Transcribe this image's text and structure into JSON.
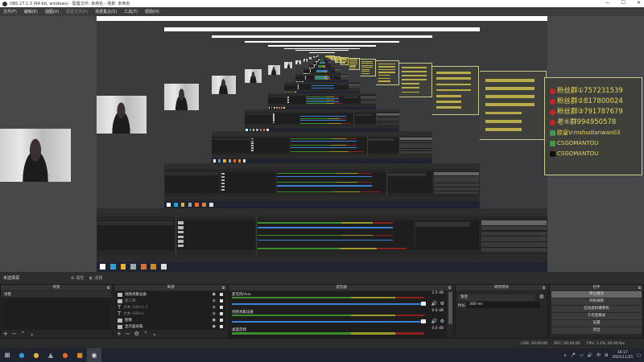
{
  "window": {
    "title": "OBS 27.1.3 (64-bit, windows) - 配置文件: 未命名 - 场景: 未命名",
    "controls": [
      "—",
      "☐",
      "✕"
    ]
  },
  "menu": [
    "文件(F)",
    "编辑(E)",
    "视图(V)",
    "配置文件(P)",
    "场景集合(S)",
    "工具(T)",
    "帮助(H)"
  ],
  "overlay": {
    "lines": [
      "粉丝群①757231539",
      "粉丝群②817800024",
      "粉丝群③791787679",
      "老⑥群994950578",
      "欧皇V:mshudianwan03",
      "CSGOMANTOU",
      "CSGOMANTOU"
    ],
    "text_color": "#e8d85a",
    "border_color": "#c8c890"
  },
  "toolbar": {
    "no_source": "未选择源",
    "properties": "属性",
    "filters": "滤镜"
  },
  "docks": {
    "scenes": {
      "title": "场景",
      "items": [
        "场景"
      ]
    },
    "sources": {
      "title": "来源",
      "items": [
        {
          "label": "视频采集设备",
          "icon": "camera-icon",
          "enabled": true
        },
        {
          "label": "窗口源",
          "icon": "window-icon",
          "enabled": false
        },
        {
          "label": "文本 (GDI+) 2",
          "icon": "text-icon",
          "enabled": false
        },
        {
          "label": "文本 (GDI+)",
          "icon": "text-icon",
          "enabled": false
        },
        {
          "label": "图像",
          "icon": "image-icon",
          "enabled": true
        },
        {
          "label": "显示器采集",
          "icon": "monitor-icon",
          "enabled": true
        }
      ]
    },
    "mixer": {
      "title": "混音器",
      "channels": [
        {
          "name": "麦克风/Aux",
          "db": "1.5 dB"
        },
        {
          "name": "视频采集设备",
          "db": "0.0 dB"
        },
        {
          "name": "桌面音频",
          "db": "0.0 dB"
        }
      ]
    },
    "transitions": {
      "title": "转场特效",
      "selected": "渐变",
      "duration_label": "时长",
      "duration": "300 ms"
    },
    "controls": {
      "title": "控件",
      "buttons": [
        "停止推流",
        "开始录制",
        "启动虚拟摄像机",
        "工作室模式",
        "设置",
        "退出"
      ]
    }
  },
  "status": {
    "live": "LIVE: 00:00:00",
    "rec": "REC: 00:00:00",
    "cpu": "CPU: 1.2%, 60.00 fps"
  },
  "taskbar": {
    "time": "18:17",
    "date": "2021/11/25",
    "apps": [
      "windows-start-icon",
      "edge-icon",
      "chrome-icon",
      "app-icon",
      "firefox-icon",
      "game-icon",
      "obs-icon"
    ]
  }
}
